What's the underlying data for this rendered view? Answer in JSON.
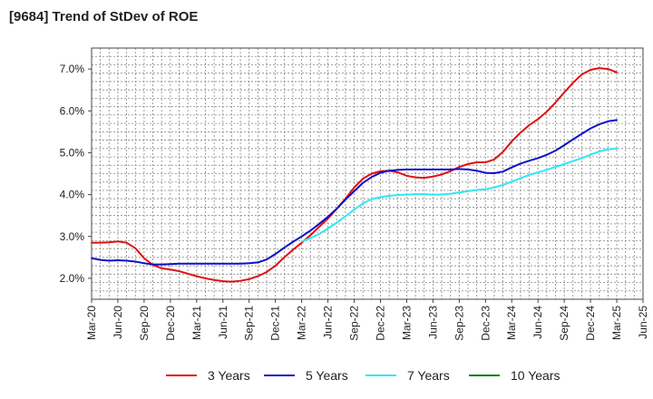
{
  "title": "[9684]  Trend of StDev of ROE",
  "colors": {
    "three_years": "#e01010",
    "five_years": "#1010c8",
    "seven_years": "#30e8f0",
    "ten_years": "#108010",
    "grid": "#888888",
    "axis": "#444444"
  },
  "chart_data": {
    "type": "line",
    "title": "[9684]  Trend of StDev of ROE",
    "xlabel": "",
    "ylabel": "",
    "x_ticks": [
      "Mar-20",
      "Jun-20",
      "Sep-20",
      "Dec-20",
      "Mar-21",
      "Jun-21",
      "Sep-21",
      "Dec-21",
      "Mar-22",
      "Jun-22",
      "Sep-22",
      "Dec-22",
      "Mar-23",
      "Jun-23",
      "Sep-23",
      "Dec-23",
      "Mar-24",
      "Jun-24",
      "Sep-24",
      "Dec-24",
      "Mar-25",
      "Jun-25"
    ],
    "y_ticks": [
      "2.0%",
      "3.0%",
      "4.0%",
      "5.0%",
      "6.0%",
      "7.0%"
    ],
    "ylim": [
      1.5,
      7.5
    ],
    "grid": true,
    "legend_position": "bottom",
    "series": [
      {
        "name": "3 Years",
        "color": "#e01010",
        "x": [
          "2020-03",
          "2020-04",
          "2020-05",
          "2020-06",
          "2020-07",
          "2020-08",
          "2020-09",
          "2020-10",
          "2020-11",
          "2020-12",
          "2021-01",
          "2021-02",
          "2021-03",
          "2021-04",
          "2021-05",
          "2021-06",
          "2021-07",
          "2021-08",
          "2021-09",
          "2021-10",
          "2021-11",
          "2021-12",
          "2022-01",
          "2022-02",
          "2022-03",
          "2022-04",
          "2022-05",
          "2022-06",
          "2022-07",
          "2022-08",
          "2022-09",
          "2022-10",
          "2022-11",
          "2022-12",
          "2023-01",
          "2023-02",
          "2023-03",
          "2023-04",
          "2023-05",
          "2023-06",
          "2023-07",
          "2023-08",
          "2023-09",
          "2023-10",
          "2023-11",
          "2023-12",
          "2024-01",
          "2024-02",
          "2024-03",
          "2024-04",
          "2024-05",
          "2024-06",
          "2024-07",
          "2024-08",
          "2024-09",
          "2024-10",
          "2024-11",
          "2024-12",
          "2025-01",
          "2025-02",
          "2025-03"
        ],
        "values": [
          2.85,
          2.85,
          2.86,
          2.88,
          2.85,
          2.72,
          2.48,
          2.32,
          2.24,
          2.21,
          2.17,
          2.11,
          2.05,
          2.0,
          1.96,
          1.93,
          1.92,
          1.94,
          1.98,
          2.05,
          2.15,
          2.3,
          2.5,
          2.68,
          2.85,
          3.03,
          3.23,
          3.43,
          3.66,
          3.9,
          4.17,
          4.38,
          4.5,
          4.56,
          4.57,
          4.53,
          4.45,
          4.41,
          4.4,
          4.43,
          4.48,
          4.56,
          4.66,
          4.73,
          4.77,
          4.77,
          4.84,
          5.02,
          5.27,
          5.48,
          5.66,
          5.8,
          5.98,
          6.2,
          6.44,
          6.67,
          6.87,
          6.98,
          7.02,
          7.0,
          6.92
        ]
      },
      {
        "name": "5 Years",
        "color": "#1010c8",
        "x": [
          "2020-03",
          "2020-04",
          "2020-05",
          "2020-06",
          "2020-07",
          "2020-08",
          "2020-09",
          "2020-10",
          "2020-11",
          "2020-12",
          "2021-01",
          "2021-02",
          "2021-03",
          "2021-04",
          "2021-05",
          "2021-06",
          "2021-07",
          "2021-08",
          "2021-09",
          "2021-10",
          "2021-11",
          "2021-12",
          "2022-01",
          "2022-02",
          "2022-03",
          "2022-04",
          "2022-05",
          "2022-06",
          "2022-07",
          "2022-08",
          "2022-09",
          "2022-10",
          "2022-11",
          "2022-12",
          "2023-01",
          "2023-02",
          "2023-03",
          "2023-04",
          "2023-05",
          "2023-06",
          "2023-07",
          "2023-08",
          "2023-09",
          "2023-10",
          "2023-11",
          "2023-12",
          "2024-01",
          "2024-02",
          "2024-03",
          "2024-04",
          "2024-05",
          "2024-06",
          "2024-07",
          "2024-08",
          "2024-09",
          "2024-10",
          "2024-11",
          "2024-12",
          "2025-01",
          "2025-02",
          "2025-03"
        ],
        "values": [
          2.48,
          2.44,
          2.42,
          2.43,
          2.42,
          2.4,
          2.36,
          2.33,
          2.33,
          2.34,
          2.35,
          2.35,
          2.35,
          2.35,
          2.35,
          2.35,
          2.35,
          2.35,
          2.36,
          2.38,
          2.45,
          2.58,
          2.73,
          2.87,
          3.0,
          3.14,
          3.3,
          3.47,
          3.66,
          3.88,
          4.08,
          4.28,
          4.42,
          4.52,
          4.57,
          4.59,
          4.6,
          4.6,
          4.6,
          4.6,
          4.6,
          4.6,
          4.61,
          4.6,
          4.57,
          4.52,
          4.51,
          4.55,
          4.65,
          4.74,
          4.81,
          4.87,
          4.95,
          5.05,
          5.18,
          5.32,
          5.45,
          5.58,
          5.68,
          5.75,
          5.78
        ]
      },
      {
        "name": "7 Years",
        "color": "#30e8f0",
        "x": [
          "2022-03",
          "2022-04",
          "2022-05",
          "2022-06",
          "2022-07",
          "2022-08",
          "2022-09",
          "2022-10",
          "2022-11",
          "2022-12",
          "2023-01",
          "2023-02",
          "2023-03",
          "2023-04",
          "2023-05",
          "2023-06",
          "2023-07",
          "2023-08",
          "2023-09",
          "2023-10",
          "2023-11",
          "2023-12",
          "2024-01",
          "2024-02",
          "2024-03",
          "2024-04",
          "2024-05",
          "2024-06",
          "2024-07",
          "2024-08",
          "2024-09",
          "2024-10",
          "2024-11",
          "2024-12",
          "2025-01",
          "2025-02",
          "2025-03"
        ],
        "values": [
          2.88,
          2.96,
          3.06,
          3.19,
          3.33,
          3.48,
          3.64,
          3.79,
          3.89,
          3.94,
          3.97,
          3.99,
          4.0,
          4.01,
          4.01,
          4.0,
          4.0,
          4.02,
          4.05,
          4.08,
          4.11,
          4.13,
          4.17,
          4.23,
          4.31,
          4.39,
          4.47,
          4.53,
          4.59,
          4.66,
          4.73,
          4.8,
          4.87,
          4.95,
          5.03,
          5.08,
          5.1
        ]
      },
      {
        "name": "10 Years",
        "color": "#108010",
        "x": [],
        "values": []
      }
    ]
  }
}
